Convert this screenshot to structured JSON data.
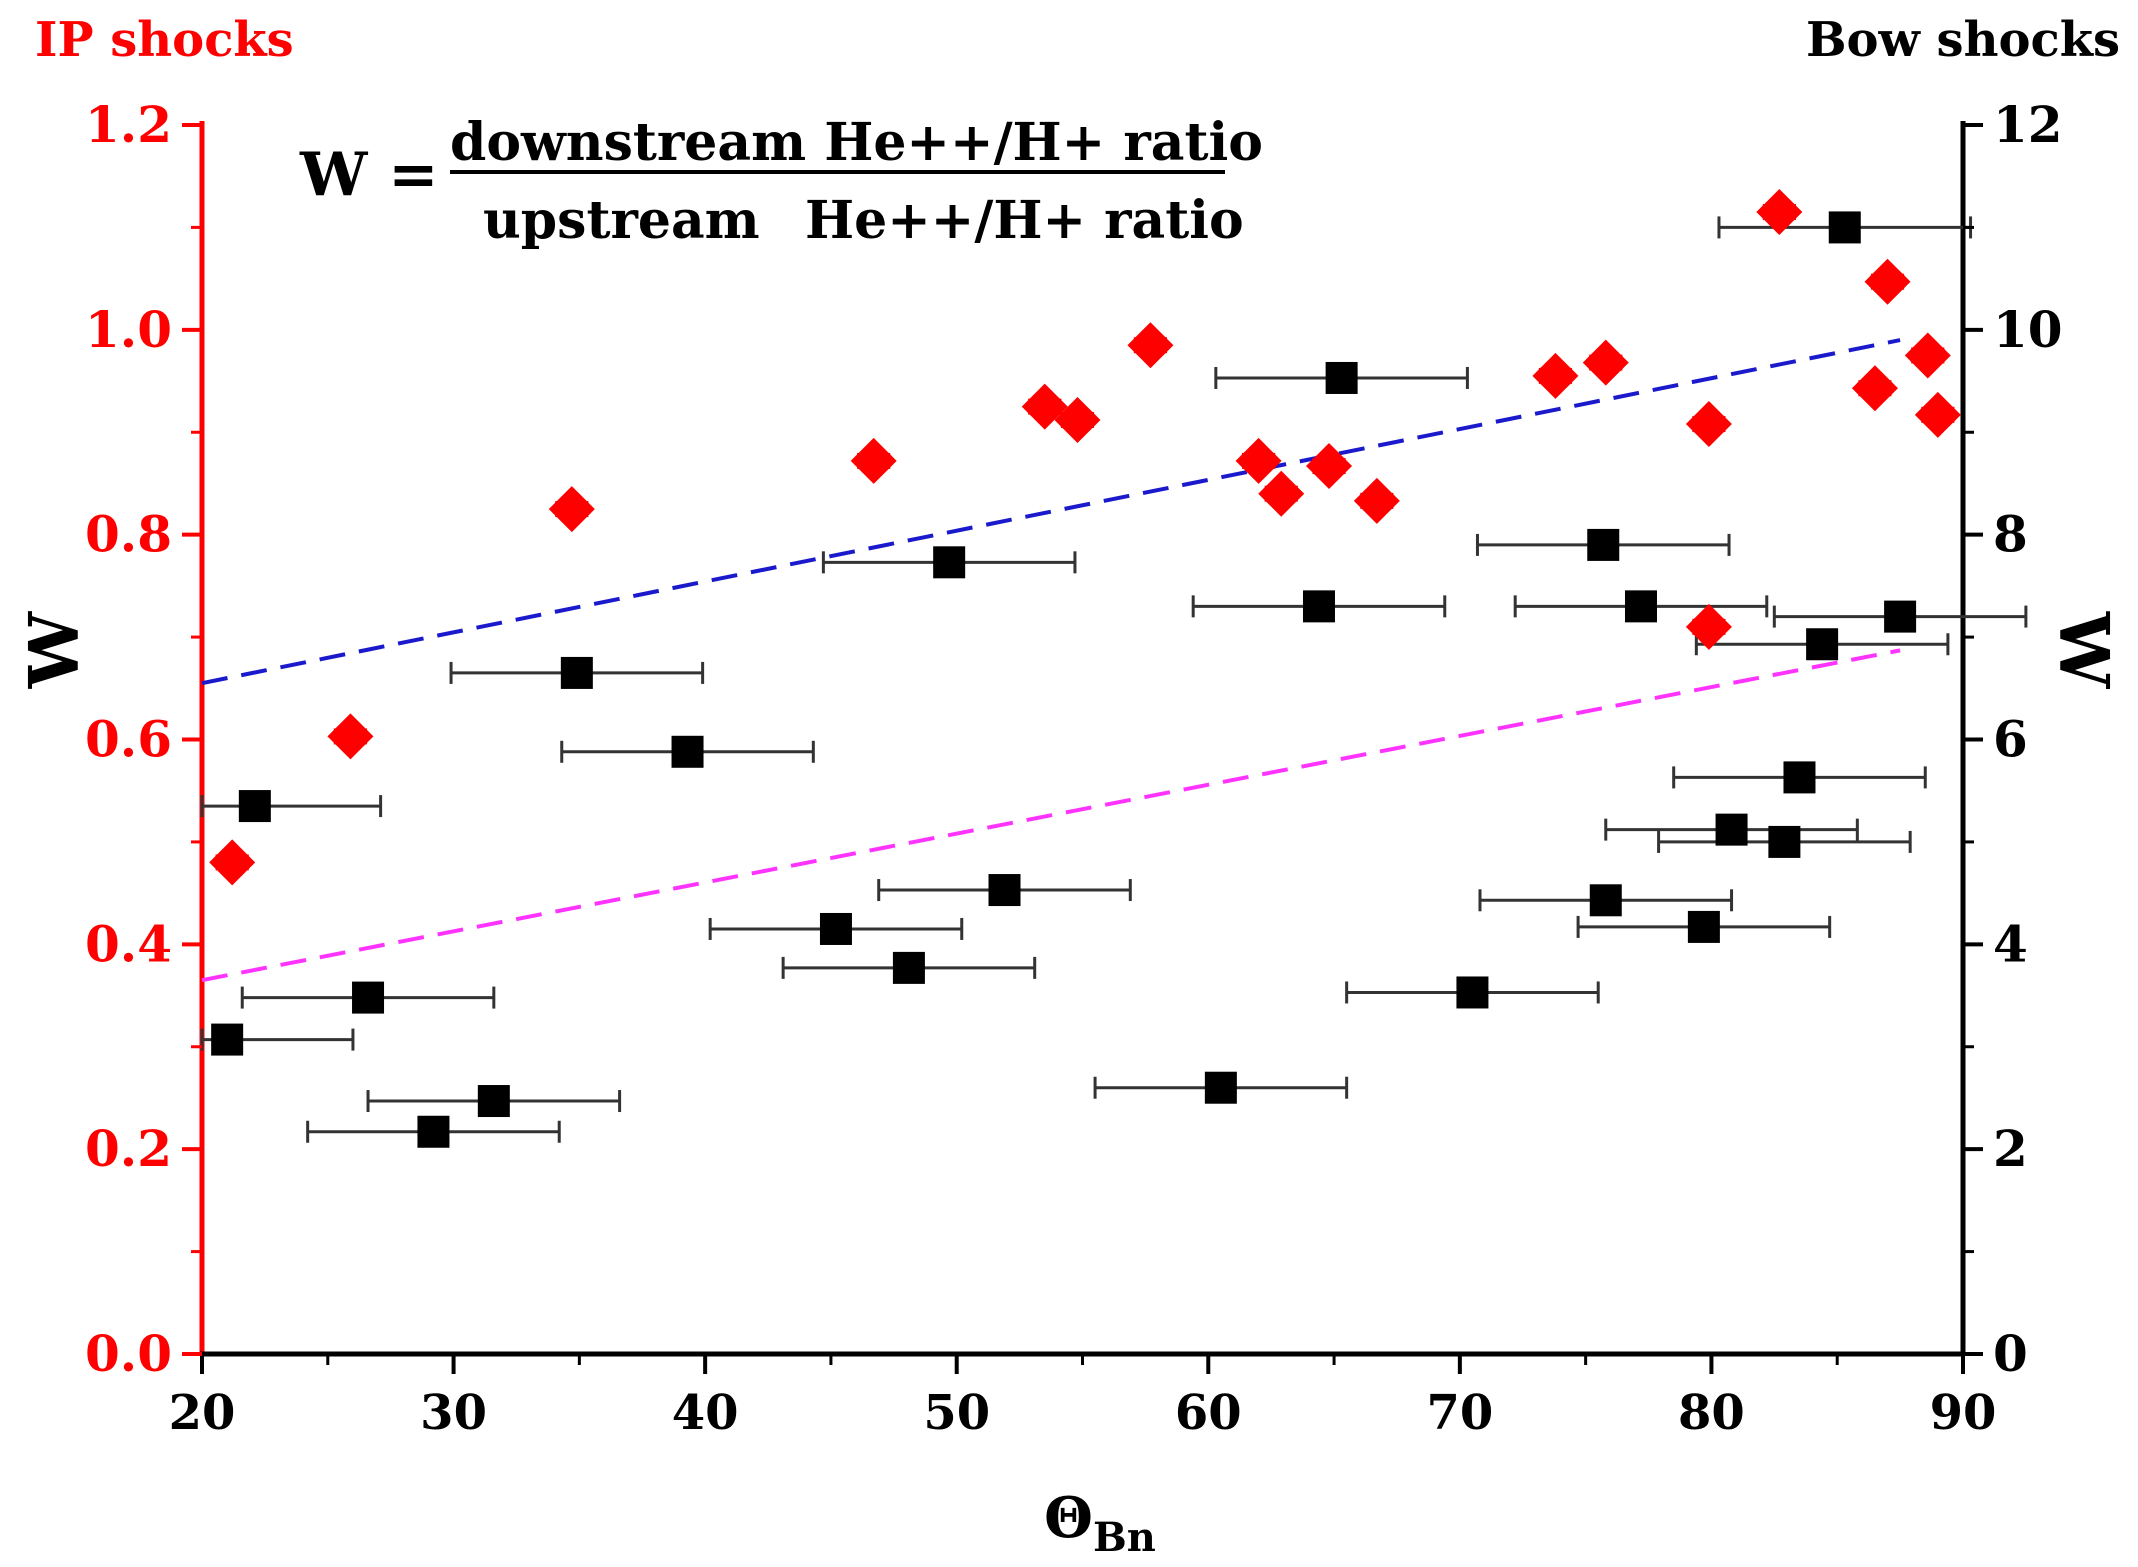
{
  "chart_data": {
    "type": "scatter",
    "title": "",
    "formula": {
      "lhs": "W =",
      "numerator": "downstream He++/H+ ratio",
      "denominator_a": "upstream",
      "denominator_b": "He++/H+ ratio"
    },
    "xlabel": "Θ",
    "xlabel_sub": "Bn",
    "xlim": [
      20,
      90
    ],
    "xticks": [
      "20",
      "30",
      "40",
      "50",
      "60",
      "70",
      "80",
      "90"
    ],
    "left_axis": {
      "title": "IP shocks",
      "label": "W",
      "ylim": [
        0,
        1.2
      ],
      "ticks": [
        "0.0",
        "0.2",
        "0.4",
        "0.6",
        "0.8",
        "1.0",
        "1.2"
      ],
      "color": "#ff0000"
    },
    "right_axis": {
      "title": "Bow shocks",
      "label": "W",
      "ylim": [
        0,
        12
      ],
      "ticks": [
        "0",
        "2",
        "4",
        "6",
        "8",
        "10",
        "12"
      ],
      "color": "#000000"
    },
    "series": [
      {
        "name": "IP shocks",
        "axis": "left",
        "marker": "diamond",
        "color": "#ff0000",
        "xerr": 0.6,
        "points": [
          [
            21.2,
            0.48
          ],
          [
            25.9,
            0.603
          ],
          [
            34.7,
            0.825
          ],
          [
            46.7,
            0.872
          ],
          [
            53.5,
            0.925
          ],
          [
            54.8,
            0.912
          ],
          [
            57.7,
            0.985
          ],
          [
            62.0,
            0.872
          ],
          [
            62.9,
            0.84
          ],
          [
            64.8,
            0.867
          ],
          [
            66.7,
            0.833
          ],
          [
            73.8,
            0.955
          ],
          [
            75.8,
            0.968
          ],
          [
            79.9,
            0.908
          ],
          [
            79.9,
            0.71
          ],
          [
            82.7,
            1.115
          ],
          [
            86.5,
            0.943
          ],
          [
            87.0,
            1.047
          ],
          [
            88.6,
            0.975
          ],
          [
            89.0,
            0.917
          ]
        ]
      },
      {
        "name": "Bow shocks",
        "axis": "right",
        "marker": "square",
        "color": "#000000",
        "xerr": 5,
        "points": [
          [
            21.0,
            3.07
          ],
          [
            22.1,
            5.35
          ],
          [
            26.6,
            3.48
          ],
          [
            29.2,
            2.17
          ],
          [
            31.6,
            2.47
          ],
          [
            34.9,
            6.65
          ],
          [
            39.3,
            5.88
          ],
          [
            45.2,
            4.15
          ],
          [
            48.1,
            3.77
          ],
          [
            49.7,
            7.73
          ],
          [
            51.9,
            4.53
          ],
          [
            60.5,
            2.6
          ],
          [
            64.4,
            7.3
          ],
          [
            65.3,
            9.53
          ],
          [
            70.5,
            3.53
          ],
          [
            75.7,
            7.9
          ],
          [
            75.8,
            4.43
          ],
          [
            77.2,
            7.3
          ],
          [
            79.7,
            4.17
          ],
          [
            80.8,
            5.12
          ],
          [
            82.9,
            5.0
          ],
          [
            83.5,
            5.63
          ],
          [
            84.4,
            6.93
          ],
          [
            85.3,
            11.0
          ],
          [
            87.5,
            7.2
          ]
        ]
      }
    ],
    "fits": [
      {
        "name": "IP shocks fit",
        "axis": "left",
        "color": "#1a1acc",
        "x": [
          20,
          87.5
        ],
        "y": [
          0.655,
          0.99
        ]
      },
      {
        "name": "Bow shocks fit",
        "axis": "right",
        "color": "#ff33ff",
        "x": [
          20,
          87.5
        ],
        "y": [
          3.65,
          6.87
        ]
      }
    ]
  }
}
